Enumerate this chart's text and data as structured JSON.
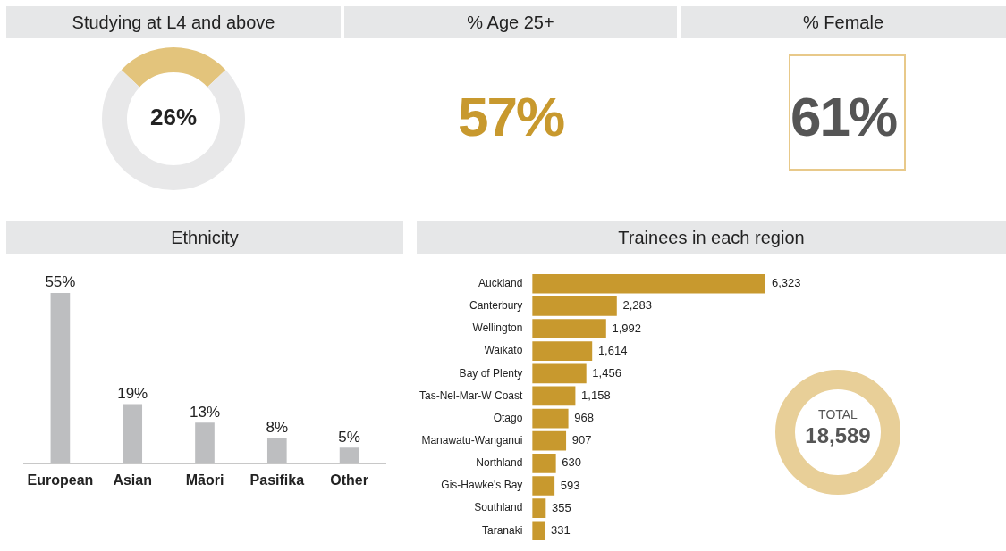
{
  "chart_data": [
    {
      "type": "donut",
      "title": "Studying at L4 and above",
      "categories": [
        null,
        null
      ],
      "values": [
        26,
        74
      ],
      "colors": [
        "#e3c47c",
        "#e8e8e9"
      ],
      "value_labels": [
        "26%",
        null
      ]
    },
    {
      "type": "other",
      "title": "% Age 25+",
      "annotations": [
        "57%"
      ],
      "color": "#c8992e"
    },
    {
      "type": "other",
      "title": "% Female",
      "annotations": [
        "61%"
      ],
      "color": "#555555"
    },
    {
      "type": "bar",
      "title": "Ethnicity",
      "categories": [
        "European",
        "Asian",
        "Māori",
        "Pasifika",
        "Other"
      ],
      "values": [
        55,
        19,
        13,
        8,
        5
      ],
      "color": "#bdbec0",
      "value_labels": [
        "55%",
        "19%",
        "13%",
        "8%",
        "5%"
      ]
    },
    {
      "type": "bar",
      "orientation": "horizontal",
      "title": "Trainees in each region",
      "categories": [
        "Auckland",
        "Canterbury",
        "Wellington",
        "Waikato",
        "Bay of Plenty",
        "Tas-Nel-Mar-W Coast",
        "Otago",
        "Manawatu-Wanganui",
        "Northland",
        "Gis-Hawke's Bay",
        "Southland",
        "Taranaki"
      ],
      "values": [
        6323,
        2283,
        1992,
        1614,
        1456,
        1158,
        968,
        907,
        630,
        593,
        355,
        331
      ],
      "color": "#c8992e",
      "value_labels": [
        "6,323",
        "2,283",
        "1,992",
        "1,614",
        "1,456",
        "1,158",
        "968",
        "907",
        "630",
        "593",
        "355",
        "331"
      ],
      "annotations": [
        "TOTAL",
        "18,589"
      ]
    }
  ]
}
